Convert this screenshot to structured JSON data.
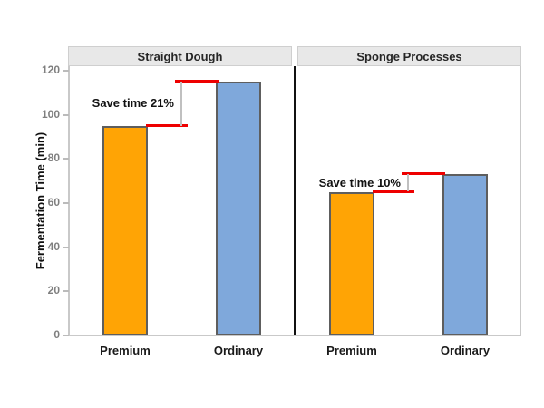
{
  "chart_data": {
    "type": "bar",
    "ylabel": "Fermentation Time (min)",
    "yticks": [
      0,
      20,
      40,
      60,
      80,
      100,
      120
    ],
    "ylim": [
      0,
      122
    ],
    "grid": false,
    "legend": "none",
    "categories": [
      "Premium",
      "Ordinary"
    ],
    "panels": [
      {
        "title": "Straight Dough",
        "values": [
          95,
          115
        ],
        "annotation_label": "Save time 21%"
      },
      {
        "title": "Sponge Processes",
        "values": [
          65,
          73
        ],
        "annotation_label": "Save time 10%"
      }
    ],
    "bar_colors": [
      "#FFA405",
      "#7FA8DB"
    ],
    "colors": {
      "background": "#FFFFFF",
      "bar_border": "#5E5E5E",
      "annotation_line": "#EE0000",
      "annotation_connector": "#C0C0C0",
      "annotation_text": "#111111",
      "strip_background": "#E8E8E8",
      "strip_border": "#CFCFCF",
      "strip_text": "#262626",
      "axis_line": "#C9C9C9",
      "tick_mark": "#BBBBBB",
      "tick_label": "#7F7F7F",
      "axis_title": "#111111",
      "category_label": "#1A1A1A",
      "panel_divider": "#111111"
    }
  }
}
